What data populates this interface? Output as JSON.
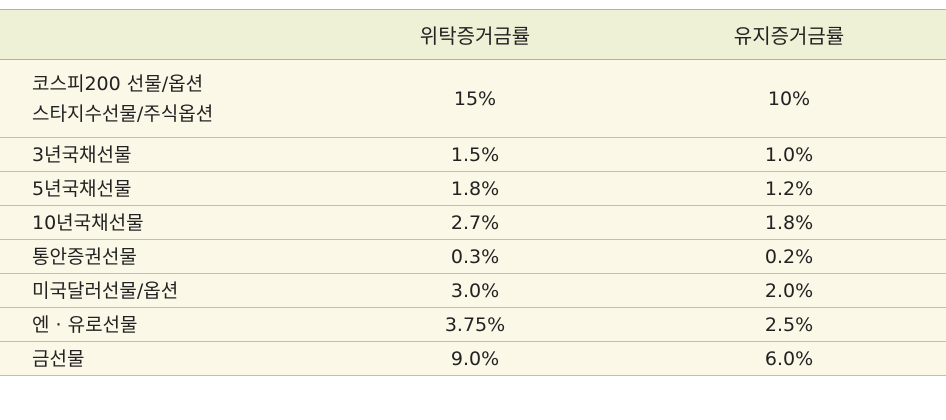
{
  "header": {
    "col_empty": "",
    "col_initial": "위탁증거금률",
    "col_maintenance": "유지증거금률"
  },
  "rows": [
    {
      "label_lines": [
        "코스피200 선물/옵션",
        "스타지수선물/주식옵션"
      ],
      "initial": "15%",
      "maintenance": "10%"
    },
    {
      "label_lines": [
        "3년국채선물"
      ],
      "initial": "1.5%",
      "maintenance": "1.0%"
    },
    {
      "label_lines": [
        "5년국채선물"
      ],
      "initial": "1.8%",
      "maintenance": "1.2%"
    },
    {
      "label_lines": [
        "10년국채선물"
      ],
      "initial": "2.7%",
      "maintenance": "1.8%"
    },
    {
      "label_lines": [
        "통안증권선물"
      ],
      "initial": "0.3%",
      "maintenance": "0.2%"
    },
    {
      "label_lines": [
        "미국달러선물/옵션"
      ],
      "initial": "3.0%",
      "maintenance": "2.0%"
    },
    {
      "label_lines": [
        "엔 · 유로선물"
      ],
      "initial": "3.75%",
      "maintenance": "2.5%"
    },
    {
      "label_lines": [
        "금선물"
      ],
      "initial": "9.0%",
      "maintenance": "6.0%"
    }
  ],
  "colors": {
    "header_bg": "#eef1d6",
    "row_bg": "#fbf8e8",
    "rule": "#a8c46a"
  }
}
